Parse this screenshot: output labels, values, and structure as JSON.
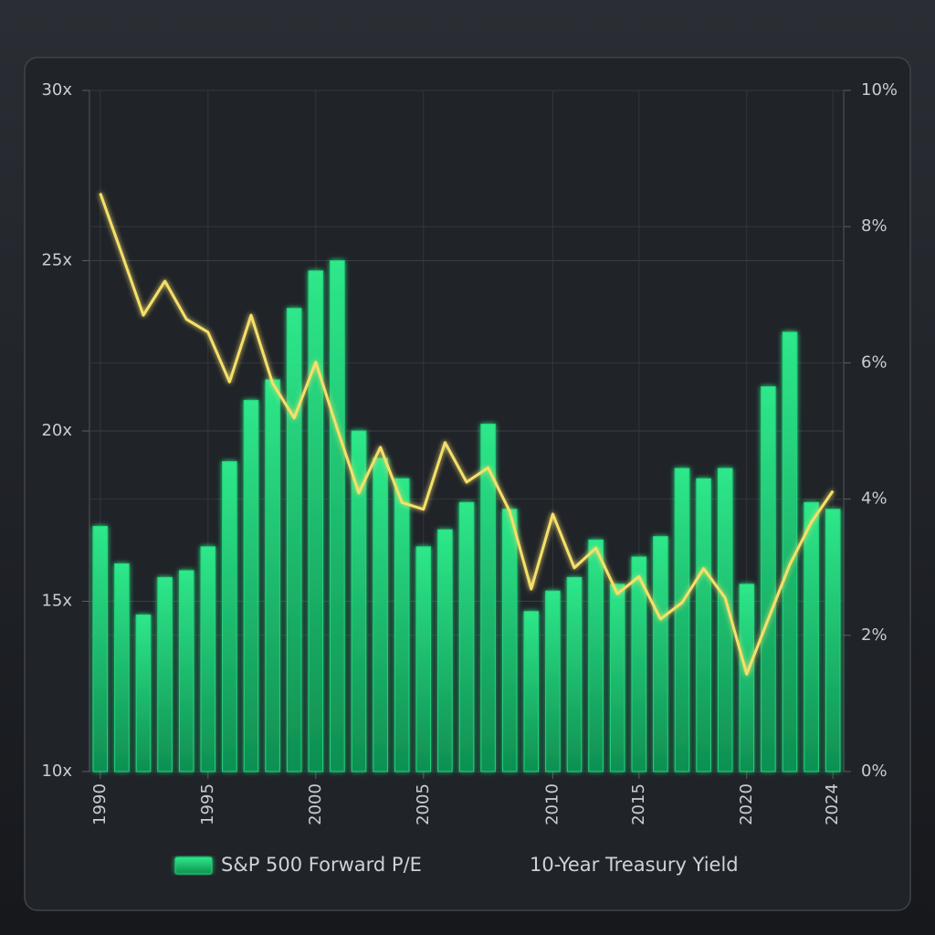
{
  "chart_data": {
    "type": "bar",
    "categories": [
      "1990",
      null,
      null,
      null,
      null,
      "1995",
      null,
      null,
      null,
      null,
      "2000",
      null,
      null,
      null,
      null,
      "2005",
      null,
      null,
      null,
      null,
      null,
      "2010",
      null,
      null,
      null,
      "2015",
      null,
      null,
      null,
      null,
      "2020",
      null,
      null,
      null,
      "2024"
    ],
    "series": [
      {
        "name": "S&P 500 Forward P/E",
        "type": "bar",
        "color": "#22d67c",
        "axis": "y",
        "values": [
          17.2,
          16.1,
          14.6,
          15.7,
          15.9,
          16.6,
          19.1,
          20.9,
          21.5,
          23.6,
          24.7,
          25.0,
          20.0,
          19.2,
          18.6,
          16.6,
          17.1,
          17.9,
          20.2,
          17.7,
          14.7,
          15.3,
          15.7,
          16.8,
          15.5,
          16.3,
          16.9,
          18.9,
          18.6,
          18.9,
          15.5,
          21.3,
          22.9,
          17.9,
          17.7
        ]
      },
      {
        "name": "10-Year Treasury Yield",
        "type": "line",
        "color": "#f5e06a",
        "axis": "y2",
        "values": [
          8.49,
          7.6,
          6.7,
          7.2,
          6.64,
          6.45,
          5.72,
          6.7,
          5.7,
          5.19,
          6.01,
          5.03,
          4.09,
          4.76,
          3.95,
          3.85,
          4.83,
          4.25,
          4.46,
          3.82,
          2.68,
          3.78,
          2.99,
          3.28,
          2.61,
          2.86,
          2.24,
          2.48,
          2.98,
          2.55,
          1.43,
          2.24,
          3.04,
          3.66,
          4.12
        ]
      }
    ],
    "ylim": [
      10,
      30
    ],
    "yticks": [
      {
        "value": 10,
        "label": "10x"
      },
      {
        "value": 15,
        "label": "15x"
      },
      {
        "value": 20,
        "label": "20x"
      },
      {
        "value": 25,
        "label": "25x"
      },
      {
        "value": 30,
        "label": "30x"
      }
    ],
    "y2lim": [
      0,
      10
    ],
    "y2ticks": [
      {
        "value": 0,
        "label": "0%"
      },
      {
        "value": 2,
        "label": "2%"
      },
      {
        "value": 4,
        "label": "4%"
      },
      {
        "value": 6,
        "label": "6%"
      },
      {
        "value": 8,
        "label": "8%"
      },
      {
        "value": 10,
        "label": "10%"
      }
    ],
    "grid": true,
    "legend": "bottom"
  }
}
